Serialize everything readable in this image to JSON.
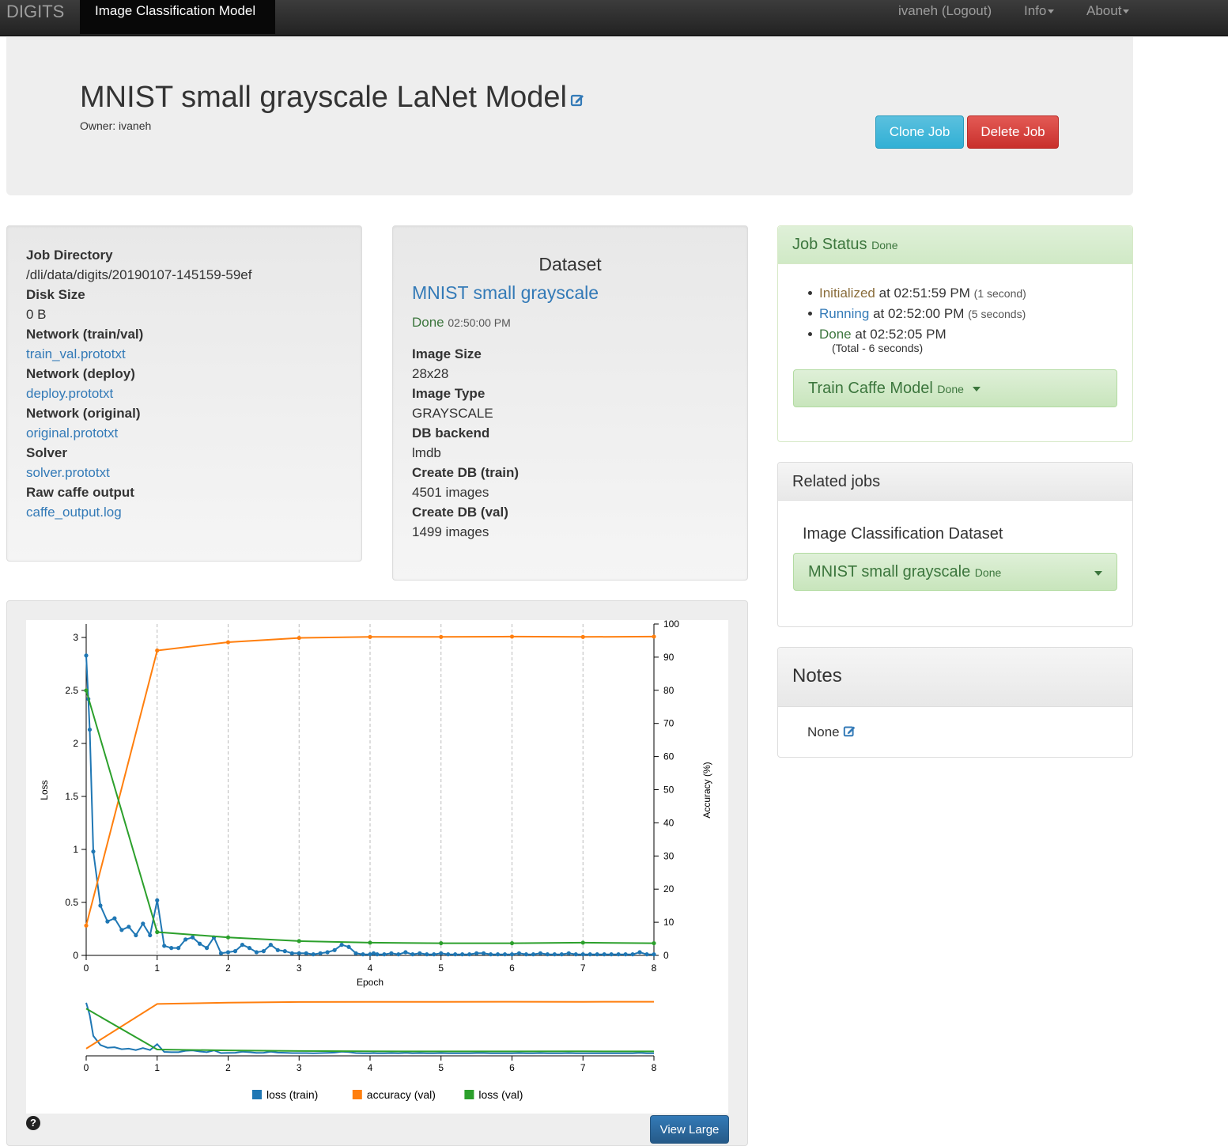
{
  "nav": {
    "brand": "DIGITS",
    "active": "Image Classification Model",
    "user": "ivaneh (Logout)",
    "info": "Info",
    "about": "About"
  },
  "header": {
    "title": "MNIST small grayscale LaNet Model",
    "owner": "Owner: ivaneh",
    "clone": "Clone Job",
    "delete": "Delete Job"
  },
  "job_info": {
    "dir_label": "Job Directory",
    "dir_value": "/dli/data/digits/20190107-145159-59ef",
    "disk_label": "Disk Size",
    "disk_value": "0 B",
    "net_trainval_label": "Network (train/val)",
    "net_trainval_link": "train_val.prototxt",
    "net_deploy_label": "Network (deploy)",
    "net_deploy_link": "deploy.prototxt",
    "net_orig_label": "Network (original)",
    "net_orig_link": "original.prototxt",
    "solver_label": "Solver",
    "solver_link": "solver.prototxt",
    "raw_label": "Raw caffe output",
    "raw_link": "caffe_output.log"
  },
  "dataset": {
    "heading": "Dataset",
    "name": "MNIST small grayscale",
    "status": "Done",
    "status_time": "02:50:00 PM",
    "image_size_label": "Image Size",
    "image_size": "28x28",
    "image_type_label": "Image Type",
    "image_type": "GRAYSCALE",
    "backend_label": "DB backend",
    "backend": "lmdb",
    "train_label": "Create DB (train)",
    "train": "4501 images",
    "val_label": "Create DB (val)",
    "val": "1499 images"
  },
  "job_status": {
    "title": "Job Status",
    "state": "Done",
    "items": [
      {
        "label": "Initialized",
        "at": "at 02:51:59 PM",
        "dur": "(1 second)",
        "color": "#8a6d3b"
      },
      {
        "label": "Running",
        "at": "at 02:52:00 PM",
        "dur": "(5 seconds)",
        "color": "#337ab7"
      },
      {
        "label": "Done",
        "at": "at 02:52:05 PM",
        "dur": "",
        "color": "#3c763d"
      }
    ],
    "total": "(Total - 6 seconds)",
    "task": "Train Caffe Model",
    "task_state": "Done"
  },
  "related": {
    "title": "Related jobs",
    "subtitle": "Image Classification Dataset",
    "dataset": "MNIST small grayscale",
    "dataset_state": "Done"
  },
  "notes": {
    "title": "Notes",
    "value": "None"
  },
  "chart_controls": {
    "help": "?",
    "view_large": "View Large"
  },
  "chart_data": {
    "type": "line",
    "xlabel": "Epoch",
    "ylabel": "Loss",
    "y2label": "Accuracy (%)",
    "xlim": [
      0,
      8
    ],
    "ylim": [
      0,
      3
    ],
    "y2lim": [
      0,
      100
    ],
    "xticks": [
      "0",
      "1",
      "2",
      "3",
      "4",
      "5",
      "6",
      "7",
      "8"
    ],
    "yticks": [
      "0",
      "0.5",
      "1",
      "1.5",
      "2",
      "2.5",
      "3"
    ],
    "y2ticks": [
      "0",
      "10",
      "20",
      "30",
      "40",
      "50",
      "60",
      "70",
      "80",
      "90",
      "100"
    ],
    "grid": "vertical dashed",
    "legend": "bottom",
    "series": [
      {
        "name": "loss (train)",
        "axis": "left",
        "color": "#1f77b4",
        "x": [
          0,
          0.03,
          0.05,
          0.1,
          0.2,
          0.3,
          0.4,
          0.5,
          0.6,
          0.7,
          0.8,
          0.9,
          1.0,
          1.1,
          1.2,
          1.3,
          1.4,
          1.5,
          1.6,
          1.7,
          1.8,
          1.9,
          2.0,
          2.1,
          2.2,
          2.3,
          2.4,
          2.5,
          2.6,
          2.7,
          2.8,
          2.9,
          3.0,
          3.1,
          3.2,
          3.3,
          3.4,
          3.5,
          3.6,
          3.7,
          3.8,
          3.9,
          4.0,
          4.05,
          4.1,
          4.2,
          4.3,
          4.4,
          4.5,
          4.6,
          4.7,
          4.8,
          4.9,
          5.0,
          5.1,
          5.2,
          5.3,
          5.4,
          5.5,
          5.6,
          5.7,
          5.8,
          5.9,
          6.0,
          6.1,
          6.2,
          6.3,
          6.4,
          6.5,
          6.6,
          6.7,
          6.8,
          6.9,
          7.0,
          7.1,
          7.2,
          7.3,
          7.4,
          7.5,
          7.6,
          7.7,
          7.8,
          7.9,
          8.0
        ],
        "y": [
          2.83,
          2.42,
          2.13,
          0.98,
          0.47,
          0.32,
          0.35,
          0.24,
          0.27,
          0.19,
          0.3,
          0.19,
          0.52,
          0.09,
          0.07,
          0.07,
          0.15,
          0.17,
          0.11,
          0.07,
          0.17,
          0.02,
          0.03,
          0.04,
          0.1,
          0.07,
          0.03,
          0.04,
          0.1,
          0.05,
          0.04,
          0.02,
          0.02,
          0.02,
          0.01,
          0.02,
          0.03,
          0.05,
          0.1,
          0.08,
          0.02,
          0.01,
          0.01,
          0.02,
          0.01,
          0.01,
          0.02,
          0.01,
          0.03,
          0.01,
          0.02,
          0.01,
          0.01,
          0.02,
          0.01,
          0.01,
          0.01,
          0.01,
          0.02,
          0.02,
          0.01,
          0.01,
          0.01,
          0.01,
          0.02,
          0.01,
          0.01,
          0.02,
          0.01,
          0.01,
          0.01,
          0.02,
          0.01,
          0.01,
          0.01,
          0.01,
          0.01,
          0.01,
          0.01,
          0.01,
          0.01,
          0.03,
          0.01,
          0.01
        ]
      },
      {
        "name": "accuracy (val)",
        "axis": "right",
        "color": "#ff7f0e",
        "x": [
          0,
          1,
          2,
          3,
          4,
          5,
          6,
          7,
          8
        ],
        "y": [
          9,
          92,
          94.5,
          95.8,
          96.1,
          96.1,
          96.2,
          96.1,
          96.2
        ]
      },
      {
        "name": "loss (val)",
        "axis": "left",
        "color": "#2ca02c",
        "x": [
          0,
          1,
          2,
          3,
          4,
          5,
          6,
          7,
          8
        ],
        "y": [
          2.5,
          0.22,
          0.17,
          0.135,
          0.12,
          0.115,
          0.115,
          0.12,
          0.115
        ]
      }
    ]
  }
}
